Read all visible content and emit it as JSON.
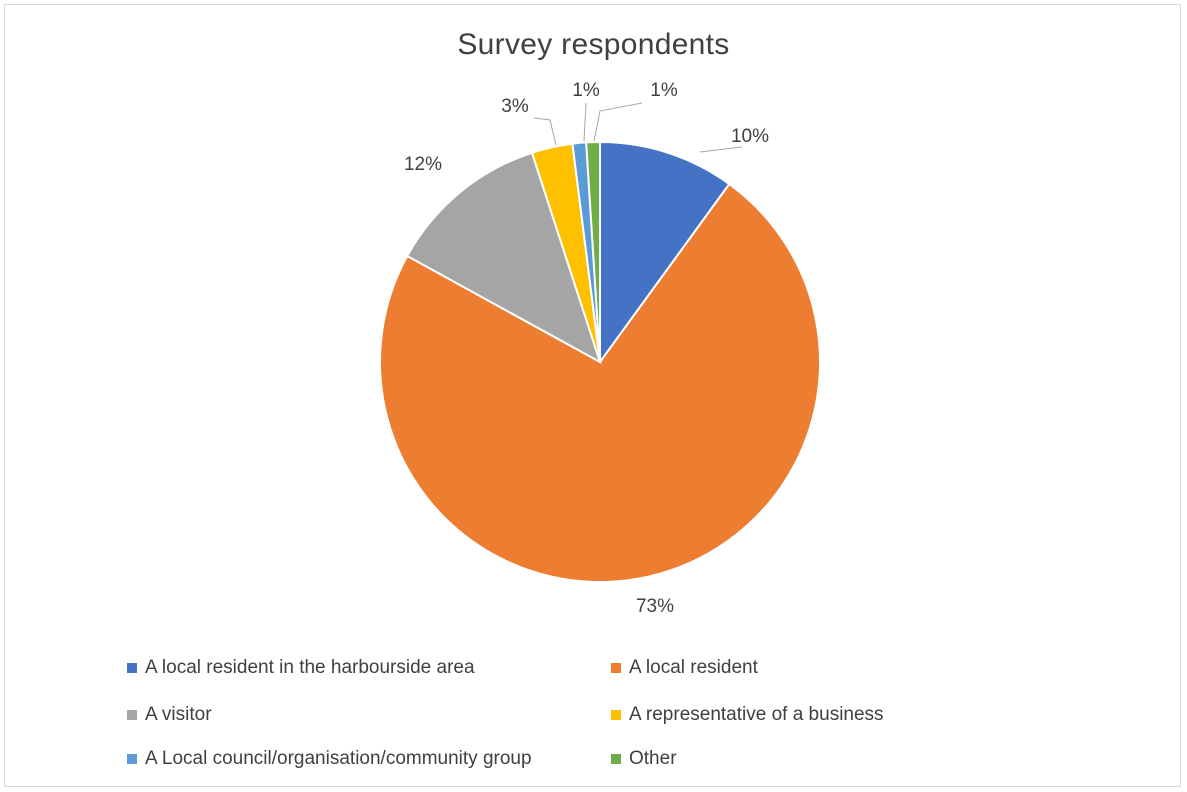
{
  "chart_data": {
    "type": "pie",
    "title": "Survey respondents",
    "slices": [
      {
        "name": "A local resident in the harbourside area",
        "value": 10,
        "label": "10%",
        "color": "#4472C4"
      },
      {
        "name": "A local resident",
        "value": 73,
        "label": "73%",
        "color": "#ED7D31"
      },
      {
        "name": "A visitor",
        "value": 12,
        "label": "12%",
        "color": "#A5A5A5"
      },
      {
        "name": "A representative of a business",
        "value": 3,
        "label": "3%",
        "color": "#FFC000"
      },
      {
        "name": "A Local council/organisation/community group",
        "value": 1,
        "label": "1%",
        "color": "#5B9BD5"
      },
      {
        "name": "Other",
        "value": 1,
        "label": "1%",
        "color": "#70AD47"
      }
    ],
    "legend_position": "bottom"
  }
}
